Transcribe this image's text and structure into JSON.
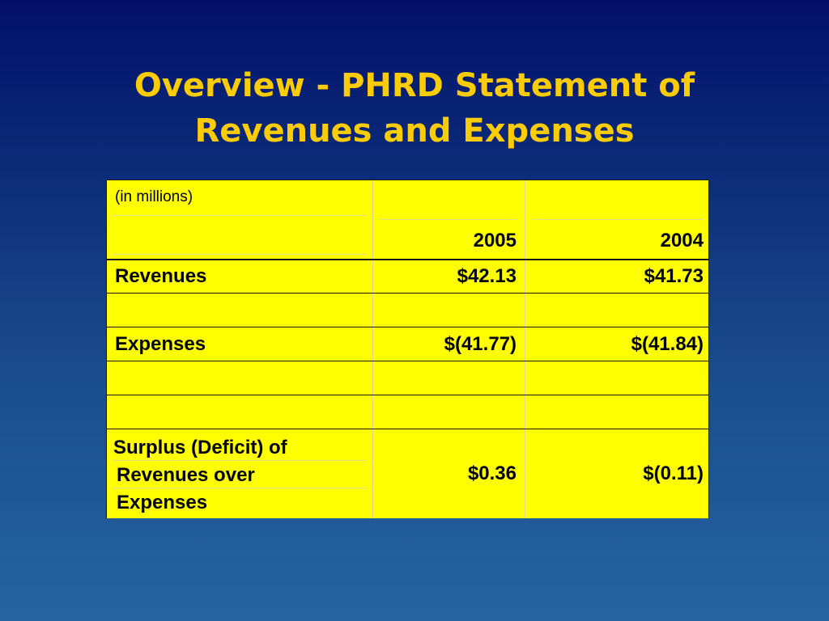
{
  "slide": {
    "title_line1": "Overview - PHRD Statement of",
    "title_line2": "Revenues and Expenses"
  },
  "table": {
    "units_note": "(in millions)",
    "columns": [
      "2005",
      "2004"
    ],
    "rows": [
      {
        "label": "Revenues",
        "values": [
          "$42.13",
          "$41.73"
        ]
      },
      {
        "label": "Expenses",
        "values": [
          "$(41.77)",
          "$(41.84)"
        ]
      },
      {
        "label_lines": [
          "Surplus (Deficit) of",
          "Revenues over",
          "Expenses"
        ],
        "values": [
          "$0.36",
          "$(0.11)"
        ]
      }
    ]
  },
  "colors": {
    "title": "#ffcc00",
    "table_fill": "#ffff00",
    "background_top": "#03106a",
    "background_bottom": "#2564a0"
  }
}
